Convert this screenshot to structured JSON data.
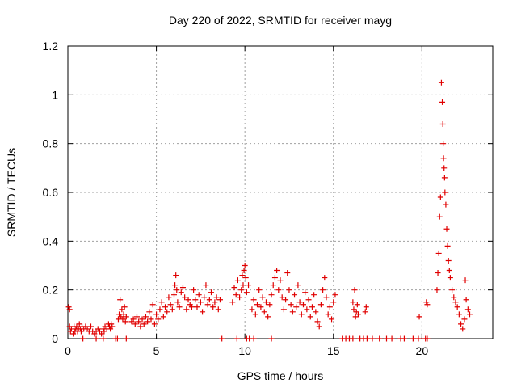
{
  "chart_data": {
    "type": "scatter",
    "title": "Day 220 of 2022, SRMTID for receiver mayg",
    "xlabel": "GPS time / hours",
    "ylabel": "SRMTID / TECUs",
    "xlim": [
      0,
      24
    ],
    "ylim": [
      0,
      1.2
    ],
    "xticks": [
      0,
      5,
      10,
      15,
      20
    ],
    "yticks": [
      0,
      0.2,
      0.4,
      0.6,
      0.8,
      1,
      1.2
    ],
    "ytick_labels": [
      "0",
      "0.2",
      "0.4",
      "0.6",
      "0.8",
      "1",
      "1.2"
    ],
    "grid": true,
    "marker": "+",
    "color": "#e00000",
    "series": [
      {
        "points": [
          [
            0.05,
            0.13
          ],
          [
            0.1,
            0.12
          ],
          [
            0.1,
            0.05
          ],
          [
            0.15,
            0.03
          ],
          [
            0.2,
            0.04
          ],
          [
            0.3,
            0.02
          ],
          [
            0.35,
            0.05
          ],
          [
            0.4,
            0.03
          ],
          [
            0.45,
            0.04
          ],
          [
            0.5,
            0.05
          ],
          [
            0.55,
            0.03
          ],
          [
            0.6,
            0.04
          ],
          [
            0.65,
            0.06
          ],
          [
            0.7,
            0.04
          ],
          [
            0.75,
            0.03
          ],
          [
            0.8,
            0.05
          ],
          [
            0.9,
            0.04
          ],
          [
            1.0,
            0.05
          ],
          [
            1.1,
            0.04
          ],
          [
            1.2,
            0.03
          ],
          [
            1.3,
            0.05
          ],
          [
            1.4,
            0.03
          ],
          [
            1.5,
            0.02
          ],
          [
            1.6,
            0.03
          ],
          [
            1.7,
            0.04
          ],
          [
            1.8,
            0.03
          ],
          [
            1.9,
            0.02
          ],
          [
            2.0,
            0.04
          ],
          [
            2.05,
            0.03
          ],
          [
            2.1,
            0.05
          ],
          [
            2.2,
            0.04
          ],
          [
            2.3,
            0.06
          ],
          [
            2.35,
            0.05
          ],
          [
            2.4,
            0.04
          ],
          [
            2.45,
            0.06
          ],
          [
            2.5,
            0.05
          ],
          [
            0.85,
            0.0
          ],
          [
            1.6,
            0.0
          ],
          [
            2.0,
            0.0
          ],
          [
            2.7,
            0.0
          ],
          [
            2.8,
            0.0
          ],
          [
            3.3,
            0.0
          ],
          [
            2.85,
            0.08
          ],
          [
            2.9,
            0.1
          ],
          [
            2.95,
            0.16
          ],
          [
            3.0,
            0.09
          ],
          [
            3.05,
            0.12
          ],
          [
            3.1,
            0.08
          ],
          [
            3.15,
            0.1
          ],
          [
            3.2,
            0.13
          ],
          [
            3.25,
            0.07
          ],
          [
            3.3,
            0.09
          ],
          [
            3.6,
            0.07
          ],
          [
            3.7,
            0.08
          ],
          [
            3.8,
            0.06
          ],
          [
            3.9,
            0.09
          ],
          [
            4.0,
            0.07
          ],
          [
            4.1,
            0.05
          ],
          [
            4.2,
            0.08
          ],
          [
            4.3,
            0.06
          ],
          [
            4.4,
            0.09
          ],
          [
            4.5,
            0.07
          ],
          [
            4.6,
            0.11
          ],
          [
            4.7,
            0.08
          ],
          [
            4.8,
            0.14
          ],
          [
            4.9,
            0.06
          ],
          [
            5.0,
            0.1
          ],
          [
            5.1,
            0.08
          ],
          [
            5.2,
            0.12
          ],
          [
            5.3,
            0.15
          ],
          [
            5.4,
            0.09
          ],
          [
            5.5,
            0.13
          ],
          [
            5.6,
            0.11
          ],
          [
            5.7,
            0.17
          ],
          [
            5.8,
            0.14
          ],
          [
            5.9,
            0.12
          ],
          [
            6.0,
            0.18
          ],
          [
            6.05,
            0.22
          ],
          [
            6.1,
            0.26
          ],
          [
            6.15,
            0.2
          ],
          [
            6.2,
            0.15
          ],
          [
            6.3,
            0.13
          ],
          [
            6.4,
            0.19
          ],
          [
            6.5,
            0.21
          ],
          [
            6.6,
            0.17
          ],
          [
            6.7,
            0.12
          ],
          [
            6.8,
            0.16
          ],
          [
            6.9,
            0.14
          ],
          [
            7.0,
            0.13
          ],
          [
            7.1,
            0.2
          ],
          [
            7.2,
            0.16
          ],
          [
            7.3,
            0.13
          ],
          [
            7.4,
            0.18
          ],
          [
            7.5,
            0.15
          ],
          [
            7.6,
            0.11
          ],
          [
            7.7,
            0.17
          ],
          [
            7.8,
            0.22
          ],
          [
            7.9,
            0.14
          ],
          [
            8.0,
            0.16
          ],
          [
            8.1,
            0.19
          ],
          [
            8.2,
            0.13
          ],
          [
            8.3,
            0.15
          ],
          [
            8.4,
            0.17
          ],
          [
            8.5,
            0.12
          ],
          [
            8.6,
            0.16
          ],
          [
            8.7,
            0.0
          ],
          [
            9.55,
            0.0
          ],
          [
            10.1,
            0.0
          ],
          [
            10.25,
            0.0
          ],
          [
            10.5,
            0.0
          ],
          [
            11.5,
            0.0
          ],
          [
            9.3,
            0.15
          ],
          [
            9.4,
            0.21
          ],
          [
            9.5,
            0.18
          ],
          [
            9.6,
            0.24
          ],
          [
            9.7,
            0.17
          ],
          [
            9.8,
            0.2
          ],
          [
            9.85,
            0.26
          ],
          [
            9.9,
            0.22
          ],
          [
            9.95,
            0.28
          ],
          [
            10.0,
            0.3
          ],
          [
            10.05,
            0.25
          ],
          [
            10.1,
            0.19
          ],
          [
            10.2,
            0.22
          ],
          [
            10.4,
            0.12
          ],
          [
            10.5,
            0.16
          ],
          [
            10.6,
            0.1
          ],
          [
            10.7,
            0.14
          ],
          [
            10.8,
            0.2
          ],
          [
            10.9,
            0.13
          ],
          [
            11.0,
            0.17
          ],
          [
            11.1,
            0.11
          ],
          [
            11.2,
            0.15
          ],
          [
            11.3,
            0.09
          ],
          [
            11.4,
            0.14
          ],
          [
            11.5,
            0.18
          ],
          [
            11.6,
            0.22
          ],
          [
            11.7,
            0.25
          ],
          [
            11.8,
            0.28
          ],
          [
            11.9,
            0.2
          ],
          [
            12.0,
            0.24
          ],
          [
            12.1,
            0.17
          ],
          [
            12.2,
            0.12
          ],
          [
            12.3,
            0.16
          ],
          [
            12.4,
            0.27
          ],
          [
            12.5,
            0.2
          ],
          [
            12.6,
            0.14
          ],
          [
            12.7,
            0.11
          ],
          [
            12.8,
            0.18
          ],
          [
            12.9,
            0.13
          ],
          [
            13.0,
            0.22
          ],
          [
            13.1,
            0.15
          ],
          [
            13.2,
            0.1
          ],
          [
            13.3,
            0.14
          ],
          [
            13.4,
            0.19
          ],
          [
            13.5,
            0.12
          ],
          [
            13.6,
            0.16
          ],
          [
            13.7,
            0.09
          ],
          [
            13.8,
            0.13
          ],
          [
            13.9,
            0.18
          ],
          [
            14.0,
            0.11
          ],
          [
            14.1,
            0.07
          ],
          [
            14.2,
            0.05
          ],
          [
            14.3,
            0.14
          ],
          [
            14.4,
            0.2
          ],
          [
            14.5,
            0.25
          ],
          [
            14.6,
            0.17
          ],
          [
            14.7,
            0.1
          ],
          [
            14.8,
            0.13
          ],
          [
            14.9,
            0.08
          ],
          [
            15.0,
            0.15
          ],
          [
            15.1,
            0.18
          ],
          [
            15.5,
            0.0
          ],
          [
            15.7,
            0.0
          ],
          [
            15.9,
            0.0
          ],
          [
            16.1,
            0.0
          ],
          [
            16.5,
            0.0
          ],
          [
            16.7,
            0.0
          ],
          [
            16.9,
            0.0
          ],
          [
            17.2,
            0.0
          ],
          [
            17.6,
            0.0
          ],
          [
            18.0,
            0.0
          ],
          [
            18.3,
            0.0
          ],
          [
            18.8,
            0.0
          ],
          [
            19.0,
            0.0
          ],
          [
            19.5,
            0.0
          ],
          [
            19.8,
            0.0
          ],
          [
            20.2,
            0.0
          ],
          [
            20.3,
            0.0
          ],
          [
            16.1,
            0.15
          ],
          [
            16.15,
            0.12
          ],
          [
            16.2,
            0.2
          ],
          [
            16.25,
            0.09
          ],
          [
            16.3,
            0.11
          ],
          [
            16.35,
            0.14
          ],
          [
            16.4,
            0.1
          ],
          [
            16.8,
            0.11
          ],
          [
            16.85,
            0.13
          ],
          [
            19.85,
            0.09
          ],
          [
            20.25,
            0.15
          ],
          [
            20.3,
            0.14
          ],
          [
            20.85,
            0.2
          ],
          [
            20.9,
            0.27
          ],
          [
            20.95,
            0.35
          ],
          [
            21.0,
            0.5
          ],
          [
            21.05,
            0.58
          ],
          [
            21.1,
            1.05
          ],
          [
            21.15,
            0.97
          ],
          [
            21.18,
            0.88
          ],
          [
            21.2,
            0.8
          ],
          [
            21.22,
            0.74
          ],
          [
            21.25,
            0.7
          ],
          [
            21.28,
            0.66
          ],
          [
            21.3,
            0.6
          ],
          [
            21.35,
            0.55
          ],
          [
            21.4,
            0.45
          ],
          [
            21.45,
            0.38
          ],
          [
            21.5,
            0.32
          ],
          [
            21.55,
            0.28
          ],
          [
            21.6,
            0.25
          ],
          [
            21.7,
            0.2
          ],
          [
            21.8,
            0.17
          ],
          [
            21.9,
            0.15
          ],
          [
            22.0,
            0.13
          ],
          [
            22.1,
            0.1
          ],
          [
            22.2,
            0.06
          ],
          [
            22.3,
            0.04
          ],
          [
            22.4,
            0.08
          ],
          [
            22.45,
            0.24
          ],
          [
            22.5,
            0.16
          ],
          [
            22.6,
            0.12
          ],
          [
            22.7,
            0.1
          ]
        ]
      }
    ]
  }
}
